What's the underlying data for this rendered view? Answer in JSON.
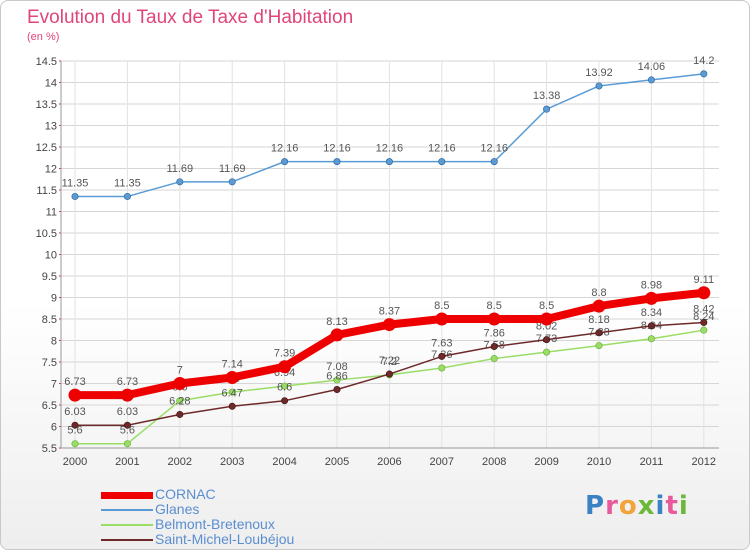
{
  "title": "Evolution du Taux de Taxe d'Habitation",
  "subtitle": "(en %)",
  "logo_text": "Proxiti",
  "logo_colors": [
    "#3b82c4",
    "#e85a9b",
    "#f2a33a",
    "#6cb83a",
    "#3b82c4",
    "#e85a9b",
    "#6cb83a"
  ],
  "chart_data": {
    "type": "line",
    "x": [
      "2000",
      "2001",
      "2002",
      "2003",
      "2004",
      "2005",
      "2006",
      "2007",
      "2008",
      "2009",
      "2010",
      "2011",
      "2012"
    ],
    "ylim": [
      5.5,
      14.5
    ],
    "yticks": [
      "5.5",
      "6",
      "6.5",
      "7",
      "7.5",
      "8",
      "8.5",
      "9",
      "9.5",
      "10",
      "10.5",
      "11",
      "11.5",
      "12",
      "12.5",
      "13",
      "13.5",
      "14",
      "14.5"
    ],
    "grid": true,
    "legend_position": "bottom-left",
    "series": [
      {
        "name": "CORNAC",
        "color": "#ee0000",
        "values": [
          6.73,
          6.73,
          7.0,
          7.14,
          7.39,
          8.13,
          8.37,
          8.5,
          8.5,
          8.5,
          8.8,
          8.98,
          9.11
        ],
        "labels": [
          "6.73",
          "6.73",
          "7",
          "7.14",
          "7.39",
          "8.13",
          "8.37",
          "8.5",
          "8.5",
          "8.5",
          "8.8",
          "8.98",
          "9.11"
        ]
      },
      {
        "name": "Glanes",
        "color": "#5b9bd5",
        "values": [
          11.35,
          11.35,
          11.69,
          11.69,
          12.16,
          12.16,
          12.16,
          12.16,
          12.16,
          13.38,
          13.92,
          14.06,
          14.2
        ],
        "labels": [
          "11.35",
          "11.35",
          "11.69",
          "11.69",
          "12.16",
          "12.16",
          "12.16",
          "12.16",
          "12.16",
          "13.38",
          "13.92",
          "14.06",
          "14.2"
        ]
      },
      {
        "name": "Belmont-Bretenoux",
        "color": "#99dd66",
        "values": [
          5.6,
          5.6,
          6.6,
          6.8,
          6.94,
          7.08,
          7.2,
          7.36,
          7.58,
          7.73,
          7.88,
          8.04,
          8.24
        ],
        "labels": [
          "5.6",
          "5.6",
          "6.6",
          "6.8",
          "6.94",
          "7.08",
          "7.2",
          "7.36",
          "7.58",
          "7.73",
          "7.88",
          "8.04",
          "8.24"
        ]
      },
      {
        "name": "Saint-Michel-Loubéjou",
        "color": "#6e2a2a",
        "values": [
          6.03,
          6.03,
          6.28,
          6.47,
          6.6,
          6.86,
          7.22,
          7.63,
          7.86,
          8.02,
          8.18,
          8.34,
          8.42
        ],
        "labels": [
          "6.03",
          "6.03",
          "6.28",
          "6.47",
          "6.6",
          "6.86",
          "7.22",
          "7.63",
          "7.86",
          "8.02",
          "8.18",
          "8.34",
          "8.42"
        ]
      }
    ]
  }
}
